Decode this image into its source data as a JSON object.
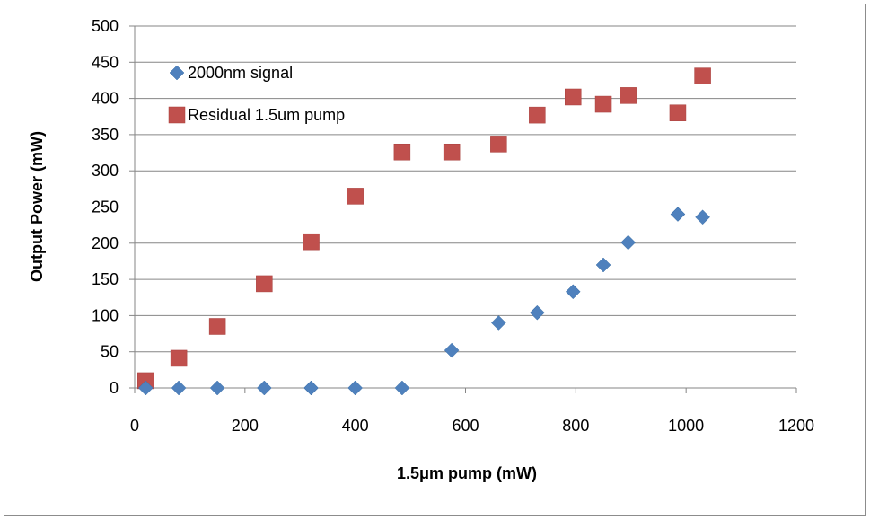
{
  "chart_data": {
    "type": "scatter",
    "title": "",
    "xlabel": "1.5μm pump (mW)",
    "ylabel": "Output Power (mW)",
    "xlim": [
      0,
      1200
    ],
    "ylim": [
      0,
      500
    ],
    "x_ticks": [
      0,
      200,
      400,
      600,
      800,
      1000,
      1200
    ],
    "y_ticks": [
      0,
      50,
      100,
      150,
      200,
      250,
      300,
      350,
      400,
      450,
      500
    ],
    "grid": "horizontal",
    "legend_position": "top-left",
    "series": [
      {
        "name": "2000nm signal",
        "marker": "diamond",
        "color": "#4F81BD",
        "x": [
          20,
          80,
          150,
          235,
          320,
          400,
          485,
          575,
          660,
          730,
          795,
          850,
          895,
          985,
          1030
        ],
        "y": [
          0,
          0,
          0,
          0,
          0,
          0,
          0,
          52,
          90,
          104,
          133,
          170,
          201,
          240,
          236
        ]
      },
      {
        "name": "Residual 1.5um pump",
        "marker": "square",
        "color": "#C0504D",
        "x": [
          20,
          80,
          150,
          235,
          320,
          400,
          485,
          575,
          660,
          730,
          795,
          850,
          895,
          985,
          1030
        ],
        "y": [
          10,
          41,
          85,
          144,
          202,
          265,
          326,
          326,
          337,
          377,
          402,
          392,
          404,
          380,
          431
        ]
      }
    ]
  }
}
